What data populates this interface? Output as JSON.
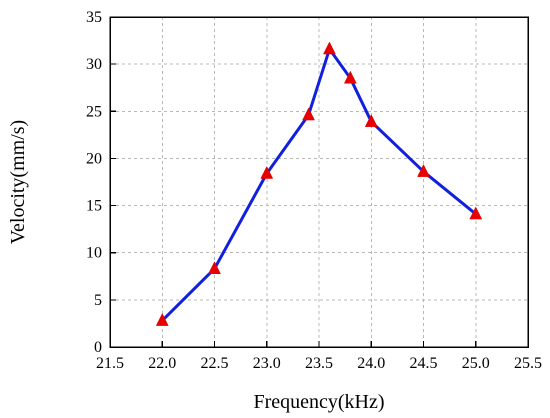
{
  "chart_data": {
    "type": "line",
    "title": "",
    "xlabel": "Frequency(kHz)",
    "ylabel": "Velocity(mm/s)",
    "xlim": [
      21.5,
      25.5
    ],
    "ylim": [
      0,
      35
    ],
    "xticks": [
      "21.5",
      "22.0",
      "22.5",
      "23.0",
      "23.5",
      "24.0",
      "24.5",
      "25.0",
      "25.5"
    ],
    "yticks": [
      "0",
      "5",
      "10",
      "15",
      "20",
      "25",
      "30",
      "35"
    ],
    "grid": true,
    "legend": "none",
    "series": [
      {
        "line_color": "#1020dd",
        "marker": "triangle",
        "marker_color": "#e60000",
        "x": [
          22.0,
          22.5,
          23.0,
          23.4,
          23.6,
          23.8,
          24.0,
          24.5,
          25.0
        ],
        "y": [
          2.8,
          8.3,
          18.4,
          24.6,
          31.6,
          28.5,
          23.9,
          18.6,
          14.1
        ]
      }
    ]
  }
}
